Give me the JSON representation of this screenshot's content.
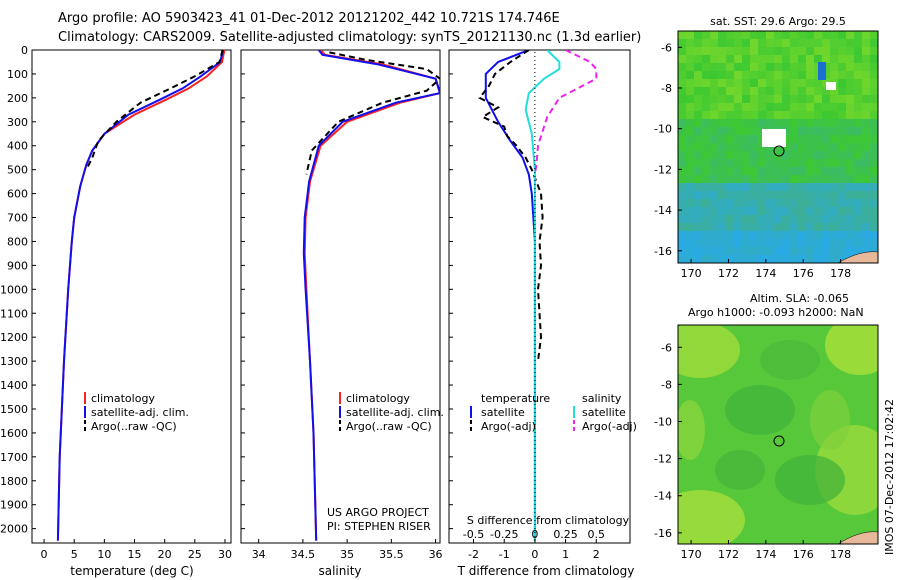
{
  "header": {
    "line1": "Argo profile: AO 5903423_41 01-Dec-2012 20121202_442 10.721S 174.746E",
    "line2": "Climatology: CARS2009. Satellite-adjusted climatology: synTS_20121130.nc (1.3d earlier)"
  },
  "colors": {
    "climatology": "#ff2020",
    "satellite": "#1010ee",
    "argo": "#000000",
    "sal_satellite": "#22dddd",
    "sal_argo": "#ee22ee"
  },
  "depth_axis": {
    "ticks": [
      "0",
      "100",
      "200",
      "300",
      "400",
      "500",
      "600",
      "700",
      "800",
      "900",
      "1000",
      "1100",
      "1200",
      "1300",
      "1400",
      "1500",
      "1600",
      "1700",
      "1800",
      "1900",
      "2000"
    ],
    "range": [
      0,
      2060
    ]
  },
  "temperature_panel": {
    "xlabel": "temperature (deg C)",
    "xticks": [
      "0",
      "5",
      "10",
      "15",
      "20",
      "25",
      "30"
    ],
    "legend": [
      "climatology",
      "satellite-adj. clim.",
      "Argo(..raw -QC)"
    ]
  },
  "salinity_panel": {
    "xlabel": "salinity",
    "xticks": [
      "34",
      "34.5",
      "35",
      "35.5",
      "36"
    ],
    "legend": [
      "climatology",
      "satellite-adj. clim.",
      "Argo(..raw -QC)"
    ],
    "credit1": "US ARGO PROJECT",
    "credit2": "PI: STEPHEN RISER"
  },
  "difference_panel": {
    "xlabel": "T difference from climatology",
    "xticks": [
      "-2",
      "-1",
      "0",
      "1",
      "2"
    ],
    "top_label": "S difference from climatology",
    "top_ticks": [
      "-0.5",
      "-0.25",
      "0",
      "0.25",
      "0.5"
    ],
    "legend_t_title": "temperature",
    "legend_s_title": "salinity",
    "legend_t": [
      "satellite",
      "Argo(-adj)"
    ],
    "legend_s": [
      "satellite",
      "Argo(-adj)"
    ]
  },
  "sst_map": {
    "title": "sat. SST: 29.6  Argo: 29.5",
    "yticks": [
      "-6",
      "-8",
      "-10",
      "-12",
      "-14",
      "-16"
    ],
    "xticks": [
      "170",
      "172",
      "174",
      "176",
      "178"
    ]
  },
  "sla_map": {
    "title1": "Altim. SLA: -0.065",
    "title2": "Argo h1000: -0.093 h2000: NaN",
    "yticks": [
      "-6",
      "-8",
      "-10",
      "-12",
      "-14",
      "-16"
    ],
    "xticks": [
      "170",
      "172",
      "174",
      "176",
      "178"
    ]
  },
  "stamp": "IMOS 07-Dec-2012 17:02:42",
  "chart_data": [
    {
      "type": "line",
      "title": "",
      "xlabel": "temperature (deg C)",
      "ylabel": "",
      "xlim": [
        -2,
        31
      ],
      "ylim": [
        2060,
        0
      ],
      "series": [
        {
          "name": "climatology",
          "x": [
            29.9,
            29.5,
            27,
            24,
            20,
            15,
            10,
            8,
            7,
            6,
            5,
            4.6,
            4,
            3.3,
            2.6,
            2.3
          ],
          "y": [
            0,
            50,
            110,
            160,
            210,
            270,
            350,
            420,
            480,
            570,
            700,
            800,
            1000,
            1300,
            1700,
            2050
          ]
        },
        {
          "name": "satellite-adj. clim.",
          "x": [
            29.7,
            29.2,
            26,
            23,
            19,
            14,
            10,
            8,
            7,
            6,
            5,
            4.6,
            4,
            3.3,
            2.6,
            2.3
          ],
          "y": [
            0,
            50,
            110,
            160,
            210,
            270,
            350,
            420,
            480,
            570,
            700,
            800,
            1000,
            1300,
            1700,
            2050
          ]
        },
        {
          "name": "Argo(..raw -QC)",
          "x": [
            29.6,
            29.1,
            25,
            21,
            16,
            12,
            9,
            8,
            7
          ],
          "y": [
            0,
            50,
            110,
            160,
            220,
            300,
            380,
            450,
            500
          ]
        }
      ]
    },
    {
      "type": "line",
      "title": "",
      "xlabel": "salinity",
      "ylabel": "",
      "xlim": [
        33.8,
        36.05
      ],
      "ylim": [
        2060,
        0
      ],
      "series": [
        {
          "name": "climatology",
          "x": [
            34.7,
            34.75,
            35.4,
            36.0,
            36.05,
            35.6,
            35.0,
            34.7,
            34.58,
            34.53,
            34.52,
            34.54,
            34.58,
            34.62,
            34.64,
            34.65
          ],
          "y": [
            0,
            20,
            60,
            120,
            180,
            220,
            300,
            400,
            550,
            700,
            850,
            1000,
            1300,
            1600,
            1900,
            2050
          ]
        },
        {
          "name": "satellite-adj. clim.",
          "x": [
            34.68,
            34.72,
            35.35,
            36.0,
            36.05,
            35.55,
            34.95,
            34.68,
            34.57,
            34.52,
            34.51,
            34.53,
            34.58,
            34.62,
            34.64,
            34.65
          ],
          "y": [
            0,
            20,
            60,
            120,
            180,
            220,
            300,
            400,
            550,
            700,
            850,
            1000,
            1300,
            1600,
            1900,
            2050
          ]
        },
        {
          "name": "Argo(..raw -QC)",
          "x": [
            34.8,
            35.2,
            35.9,
            36.05,
            35.9,
            35.4,
            34.9,
            34.6,
            34.54
          ],
          "y": [
            10,
            40,
            80,
            120,
            170,
            220,
            300,
            420,
            520
          ]
        }
      ]
    },
    {
      "type": "line",
      "title": "",
      "xlabel": "T difference from climatology",
      "ylabel": "",
      "xlim": [
        -2.8,
        3.1
      ],
      "ylim": [
        2060,
        0
      ],
      "series": [
        {
          "name": "temperature satellite",
          "x": [
            -0.2,
            -1.2,
            -1.6,
            -1.6,
            -1.2,
            -0.8,
            -0.4,
            -0.2,
            -0.1,
            0,
            0
          ],
          "y": [
            0,
            50,
            100,
            200,
            300,
            380,
            450,
            520,
            600,
            800,
            2050
          ]
        },
        {
          "name": "temperature Argo(-adj)",
          "x": [
            -0.2,
            -0.8,
            -1.3,
            -1.5,
            -1.8,
            -1.2,
            -1.7,
            -1.0,
            -0.9,
            -0.6,
            -0.3,
            -0.1,
            0.2,
            0.25,
            0.15,
            0.2,
            0.1,
            0.15,
            0.2,
            0.1
          ],
          "y": [
            0,
            50,
            100,
            150,
            200,
            240,
            280,
            320,
            360,
            400,
            450,
            500,
            600,
            700,
            800,
            900,
            1000,
            1100,
            1200,
            1300
          ]
        },
        {
          "name": "salinity satellite",
          "x": [
            0.4,
            0.8,
            0.8,
            0.3,
            -0.2,
            -0.3,
            -0.1,
            0,
            0,
            0
          ],
          "y": [
            0,
            50,
            80,
            120,
            180,
            250,
            350,
            500,
            800,
            2050
          ]
        },
        {
          "name": "salinity Argo(-adj)",
          "x": [
            1.0,
            1.8,
            2.0,
            2.0,
            1.4,
            0.8,
            0.4,
            0.1,
            0.05,
            0
          ],
          "y": [
            0,
            50,
            80,
            120,
            160,
            200,
            280,
            400,
            480,
            520
          ]
        }
      ]
    }
  ]
}
